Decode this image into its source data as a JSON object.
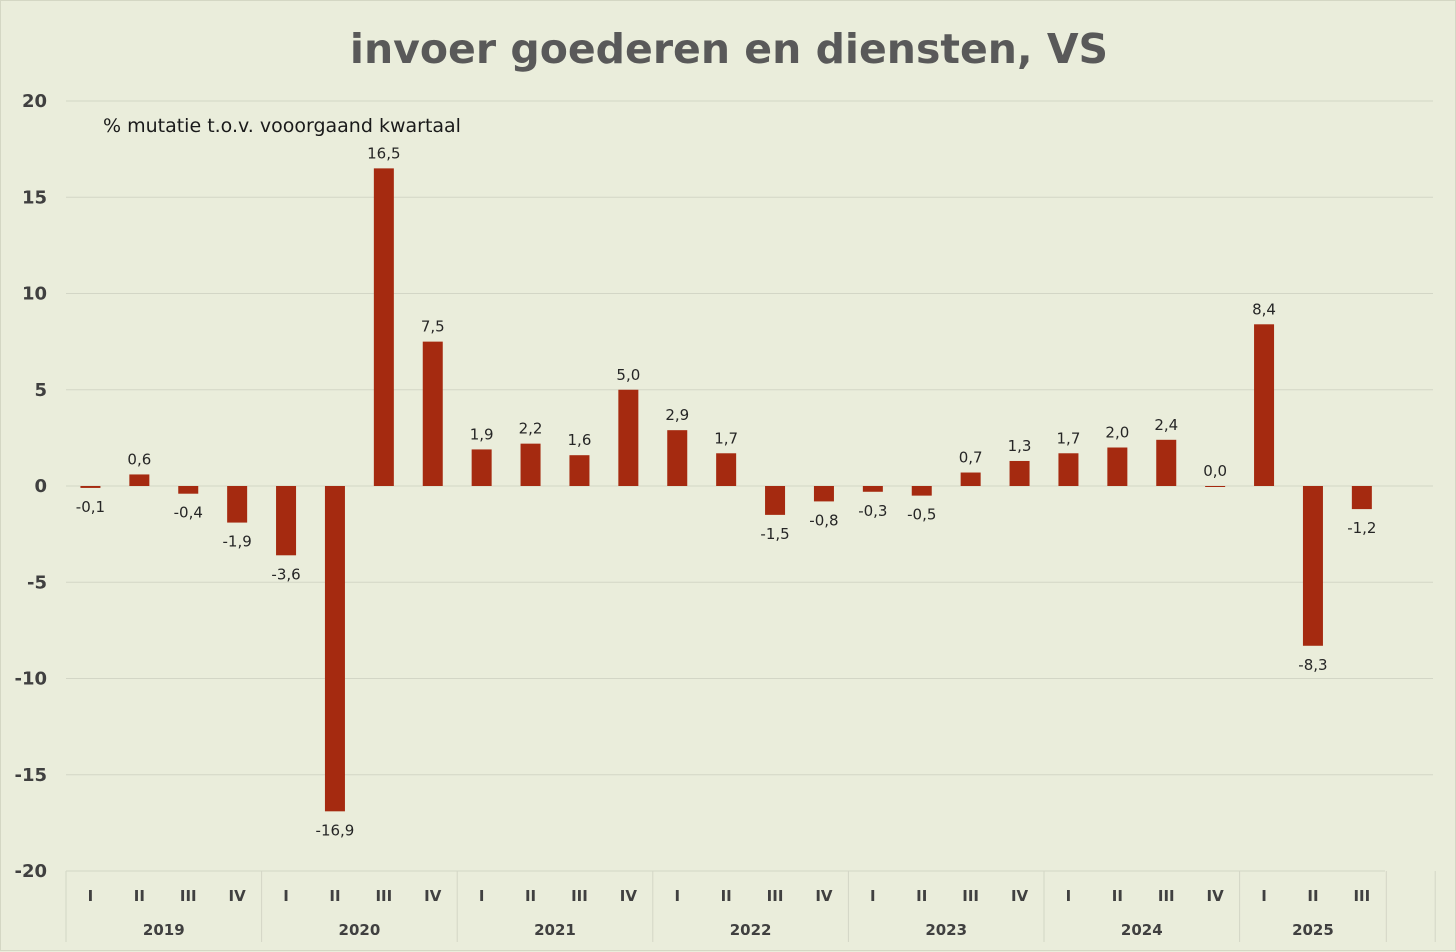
{
  "chart_data": {
    "type": "bar",
    "title": "invoer goederen en diensten, VS",
    "subtitle": "% mutatie t.o.v. vooorgaand kwartaal",
    "ylim": [
      -20,
      20
    ],
    "yticks": [
      20,
      15,
      10,
      5,
      0,
      -5,
      -10,
      -15,
      -20
    ],
    "grid": true,
    "bar_color": "#a52a10",
    "years": [
      {
        "label": "2019",
        "quarters": [
          "I",
          "II",
          "III",
          "IV"
        ]
      },
      {
        "label": "2020",
        "quarters": [
          "I",
          "II",
          "III",
          "IV"
        ]
      },
      {
        "label": "2021",
        "quarters": [
          "I",
          "II",
          "III",
          "IV"
        ]
      },
      {
        "label": "2022",
        "quarters": [
          "I",
          "II",
          "III",
          "IV"
        ]
      },
      {
        "label": "2023",
        "quarters": [
          "I",
          "II",
          "III",
          "IV"
        ]
      },
      {
        "label": "2024",
        "quarters": [
          "I",
          "II",
          "III",
          "IV"
        ]
      },
      {
        "label": "2025",
        "quarters": [
          "I",
          "II",
          "III"
        ]
      }
    ],
    "values": [
      -0.1,
      0.6,
      -0.4,
      -1.9,
      -3.6,
      -16.9,
      16.5,
      7.5,
      1.9,
      2.2,
      1.6,
      5.0,
      2.9,
      1.7,
      -1.5,
      -0.8,
      -0.3,
      -0.5,
      0.7,
      1.3,
      1.7,
      2.0,
      2.4,
      0.0,
      8.4,
      -8.3,
      -1.2
    ],
    "data_labels": [
      "-0,1",
      "0,6",
      "-0,4",
      "-1,9",
      "-3,6",
      "-16,9",
      "16,5",
      "7,5",
      "1,9",
      "2,2",
      "1,6",
      "5,0",
      "2,9",
      "1,7",
      "-1,5",
      "-0,8",
      "-0,3",
      "-0,5",
      "0,7",
      "1,3",
      "1,7",
      "2,0",
      "2,4",
      "0,0",
      "8,4",
      "-8,3",
      "-1,2"
    ]
  }
}
